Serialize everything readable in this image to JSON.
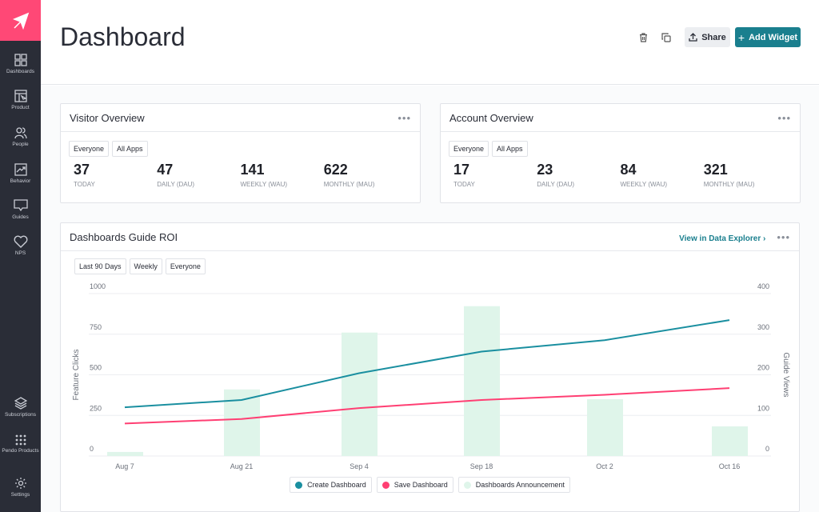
{
  "sidebar": {
    "items": [
      {
        "label": "Dashboards",
        "icon": "grid-icon"
      },
      {
        "label": "Product",
        "icon": "product-icon"
      },
      {
        "label": "People",
        "icon": "people-icon"
      },
      {
        "label": "Behavior",
        "icon": "chart-icon"
      },
      {
        "label": "Guides",
        "icon": "message-icon"
      },
      {
        "label": "NPS",
        "icon": "heart-icon"
      }
    ],
    "bottom": [
      {
        "label": "Subscriptions",
        "icon": "layers-icon"
      },
      {
        "label": "Pendo Products",
        "icon": "apps-icon"
      },
      {
        "label": "Settings",
        "icon": "gear-icon"
      }
    ]
  },
  "header": {
    "title": "Dashboard",
    "share": "Share",
    "add_widget": "Add Widget"
  },
  "visitor": {
    "title": "Visitor Overview",
    "filters": [
      "Everyone",
      "All Apps"
    ],
    "stats": [
      {
        "value": "37",
        "label": "TODAY"
      },
      {
        "value": "47",
        "label": "DAILY (DAU)"
      },
      {
        "value": "141",
        "label": "WEEKLY (WAU)"
      },
      {
        "value": "622",
        "label": "MONTHLY (MAU)"
      }
    ]
  },
  "account": {
    "title": "Account Overview",
    "filters": [
      "Everyone",
      "All Apps"
    ],
    "stats": [
      {
        "value": "17",
        "label": "TODAY"
      },
      {
        "value": "23",
        "label": "DAILY (DAU)"
      },
      {
        "value": "84",
        "label": "WEEKLY (WAU)"
      },
      {
        "value": "321",
        "label": "MONTHLY (MAU)"
      }
    ]
  },
  "roi": {
    "title": "Dashboards Guide ROI",
    "link": "View in Data Explorer ›",
    "filters": [
      "Last 90 Days",
      "Weekly",
      "Everyone"
    ]
  },
  "colors": {
    "accent": "#1a7f8e",
    "brand": "#ff4876",
    "create": "#1a8fa0",
    "save": "#ff3f73",
    "bars": "#dff5ea"
  },
  "chart_data": {
    "type": "bar+line",
    "categories": [
      "Aug 7",
      "Aug 21",
      "Sep 4",
      "Sep 18",
      "Oct 2",
      "Oct 16"
    ],
    "ylabel": "Feature Clicks",
    "ylim": [
      0,
      1000
    ],
    "yticks": [
      "1000",
      "750",
      "500",
      "250",
      "0"
    ],
    "y2label": "Guide Views",
    "y2lim": [
      0,
      400
    ],
    "y2ticks": [
      "400",
      "300",
      "200",
      "100",
      "0"
    ],
    "grid": true,
    "legend": "bottom",
    "series": [
      {
        "name": "Create Dashboard",
        "type": "line",
        "axis": "left",
        "values": [
          300,
          345,
          510,
          643,
          713,
          837
        ]
      },
      {
        "name": "Save Dashboard",
        "type": "line",
        "axis": "left",
        "values": [
          200,
          228,
          295,
          345,
          377,
          418
        ]
      },
      {
        "name": "Dashboards Announcement",
        "type": "bar",
        "axis": "right",
        "values": [
          10,
          164,
          304,
          369,
          140,
          73
        ]
      }
    ]
  }
}
